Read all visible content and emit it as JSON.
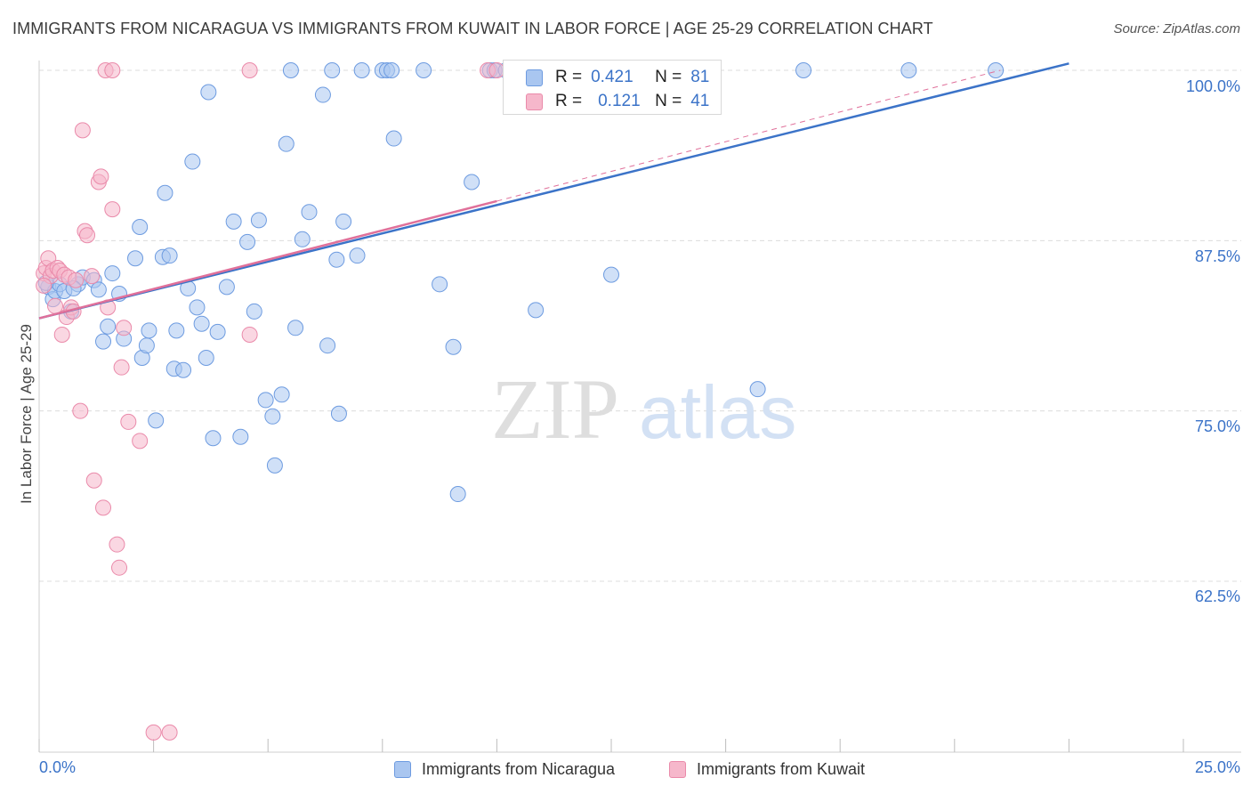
{
  "title": "IMMIGRANTS FROM NICARAGUA VS IMMIGRANTS FROM KUWAIT IN LABOR FORCE | AGE 25-29 CORRELATION CHART",
  "source": "Source: ZipAtlas.com",
  "watermark": {
    "zip": "ZIP",
    "atlas": "atlas"
  },
  "colors": {
    "blue": "#a9c6f0",
    "blue_stroke": "#6d9be0",
    "blue_line": "#3b73c8",
    "pink": "#f6b7cb",
    "pink_stroke": "#ea8aaa",
    "pink_line": "#e0709a",
    "axis_text": "#3b73c8",
    "grid": "#dcdcdc"
  },
  "legend": {
    "r_label": "R =",
    "n_label": "N =",
    "series": [
      {
        "r": "0.421",
        "n": "81"
      },
      {
        "r": "0.121",
        "n": "41"
      }
    ]
  },
  "chart_data": {
    "type": "scatter",
    "title": "IMMIGRANTS FROM NICARAGUA VS IMMIGRANTS FROM KUWAIT IN LABOR FORCE | AGE 25-29 CORRELATION CHART",
    "xlabel": "",
    "ylabel": "In Labor Force | Age 25-29",
    "xlim": [
      0,
      25
    ],
    "ylim": [
      50,
      100.5
    ],
    "x_tick_labels": [
      "0.0%",
      "25.0%"
    ],
    "y_ticks": [
      62.5,
      75.0,
      87.5,
      100.0
    ],
    "y_tick_labels": [
      "62.5%",
      "75.0%",
      "87.5%",
      "100.0%"
    ],
    "grid": true,
    "legend_position": "bottom",
    "series": [
      {
        "name": "Immigrants from Nicaragua",
        "trend": {
          "x": [
            0,
            22.5
          ],
          "y": [
            81.8,
            100.5
          ],
          "dashed_to": null
        },
        "points": [
          [
            0.2,
            84.1
          ],
          [
            0.3,
            83.2
          ],
          [
            0.35,
            83.8
          ],
          [
            0.45,
            84.3
          ],
          [
            0.55,
            83.8
          ],
          [
            0.7,
            82.3
          ],
          [
            0.85,
            84.3
          ],
          [
            0.95,
            84.8
          ],
          [
            1.2,
            84.6
          ],
          [
            1.3,
            83.9
          ],
          [
            1.4,
            80.1
          ],
          [
            1.5,
            81.2
          ],
          [
            1.6,
            85.1
          ],
          [
            1.75,
            83.6
          ],
          [
            1.85,
            80.3
          ],
          [
            2.1,
            86.2
          ],
          [
            2.2,
            88.5
          ],
          [
            2.25,
            78.9
          ],
          [
            2.35,
            79.8
          ],
          [
            2.4,
            80.9
          ],
          [
            2.55,
            74.3
          ],
          [
            2.7,
            86.3
          ],
          [
            2.75,
            91.0
          ],
          [
            2.85,
            86.4
          ],
          [
            2.95,
            78.1
          ],
          [
            3.0,
            80.9
          ],
          [
            3.15,
            78.0
          ],
          [
            3.25,
            84.0
          ],
          [
            3.35,
            93.3
          ],
          [
            3.45,
            82.6
          ],
          [
            3.55,
            81.4
          ],
          [
            3.65,
            78.9
          ],
          [
            3.7,
            98.4
          ],
          [
            3.8,
            73.0
          ],
          [
            3.9,
            80.8
          ],
          [
            4.1,
            84.1
          ],
          [
            4.25,
            88.9
          ],
          [
            4.4,
            73.1
          ],
          [
            4.55,
            87.4
          ],
          [
            4.7,
            82.3
          ],
          [
            4.8,
            89.0
          ],
          [
            4.95,
            75.8
          ],
          [
            5.1,
            74.6
          ],
          [
            5.15,
            71.0
          ],
          [
            5.3,
            76.2
          ],
          [
            5.4,
            94.6
          ],
          [
            5.5,
            100.0
          ],
          [
            5.6,
            81.1
          ],
          [
            5.75,
            87.6
          ],
          [
            5.9,
            89.6
          ],
          [
            6.2,
            98.2
          ],
          [
            6.3,
            79.8
          ],
          [
            6.4,
            100.0
          ],
          [
            6.5,
            86.1
          ],
          [
            6.55,
            74.8
          ],
          [
            6.65,
            88.9
          ],
          [
            6.95,
            86.4
          ],
          [
            7.05,
            100.0
          ],
          [
            7.5,
            100.0
          ],
          [
            7.6,
            100.0
          ],
          [
            7.7,
            100.0
          ],
          [
            7.75,
            95.0
          ],
          [
            8.4,
            100.0
          ],
          [
            8.75,
            84.3
          ],
          [
            9.05,
            79.7
          ],
          [
            9.15,
            68.9
          ],
          [
            9.45,
            91.8
          ],
          [
            9.85,
            100.0
          ],
          [
            9.95,
            100.0
          ],
          [
            10.2,
            100.0
          ],
          [
            10.4,
            100.0
          ],
          [
            10.85,
            82.4
          ],
          [
            11.8,
            100.0
          ],
          [
            12.1,
            100.0
          ],
          [
            12.5,
            85.0
          ],
          [
            15.7,
            76.6
          ],
          [
            16.7,
            100.0
          ],
          [
            19.0,
            100.0
          ],
          [
            20.9,
            100.0
          ],
          [
            0.75,
            84.0
          ],
          [
            0.15,
            84.4
          ]
        ]
      },
      {
        "name": "Immigrants from Kuwait",
        "trend": {
          "x": [
            0,
            10.0
          ],
          "y": [
            81.8,
            90.4
          ],
          "dashed_to": [
            21.0,
            100.0
          ]
        },
        "points": [
          [
            0.1,
            85.1
          ],
          [
            0.15,
            85.5
          ],
          [
            0.2,
            86.2
          ],
          [
            0.25,
            84.9
          ],
          [
            0.3,
            85.3
          ],
          [
            0.35,
            82.7
          ],
          [
            0.4,
            85.5
          ],
          [
            0.45,
            85.3
          ],
          [
            0.5,
            80.6
          ],
          [
            0.55,
            85.0
          ],
          [
            0.6,
            81.9
          ],
          [
            0.65,
            84.8
          ],
          [
            0.7,
            82.6
          ],
          [
            0.75,
            82.3
          ],
          [
            0.8,
            84.6
          ],
          [
            0.9,
            75.0
          ],
          [
            0.95,
            95.6
          ],
          [
            1.0,
            88.2
          ],
          [
            1.05,
            87.9
          ],
          [
            1.15,
            84.9
          ],
          [
            1.2,
            69.9
          ],
          [
            1.3,
            91.8
          ],
          [
            1.35,
            92.2
          ],
          [
            1.4,
            67.9
          ],
          [
            1.45,
            100.0
          ],
          [
            1.5,
            82.6
          ],
          [
            1.6,
            89.8
          ],
          [
            1.6,
            100.0
          ],
          [
            1.7,
            65.2
          ],
          [
            1.75,
            63.5
          ],
          [
            1.8,
            78.2
          ],
          [
            1.85,
            81.1
          ],
          [
            1.95,
            74.2
          ],
          [
            2.2,
            72.8
          ],
          [
            2.5,
            51.4
          ],
          [
            2.85,
            51.4
          ],
          [
            4.6,
            100.0
          ],
          [
            4.6,
            80.6
          ],
          [
            9.8,
            100.0
          ],
          [
            10.0,
            100.0
          ],
          [
            0.1,
            84.2
          ]
        ]
      }
    ]
  }
}
